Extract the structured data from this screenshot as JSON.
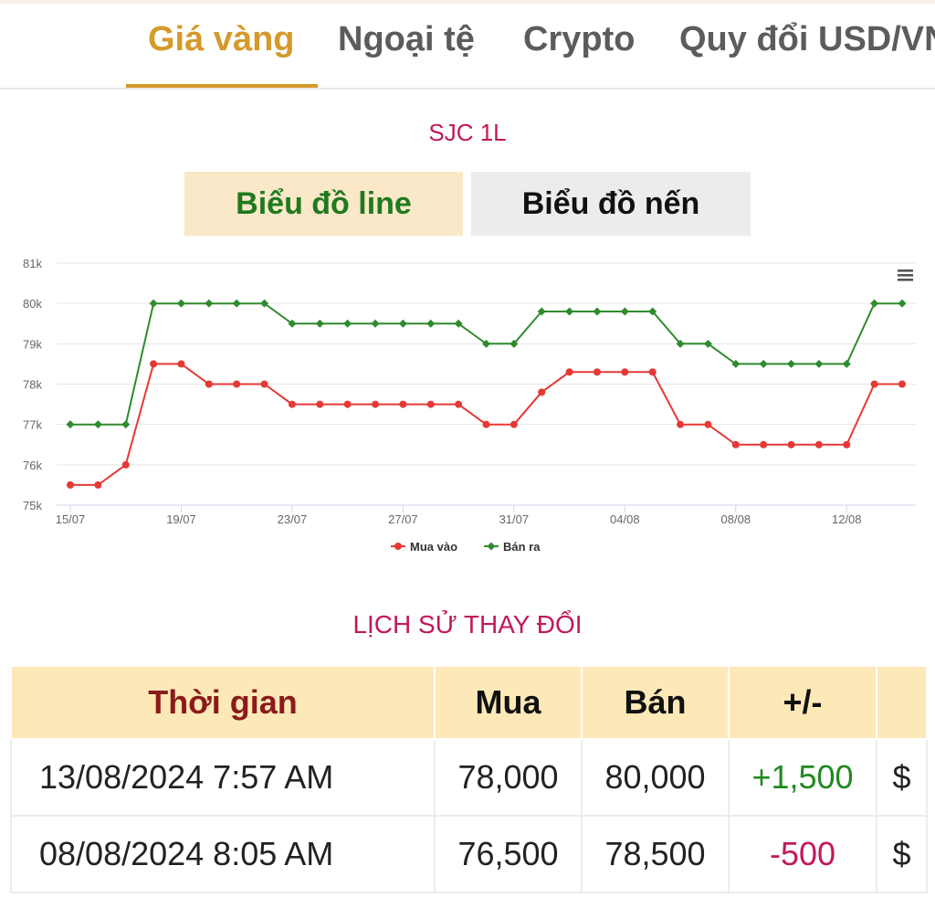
{
  "tabs": [
    {
      "label": "Giá vàng",
      "active": true
    },
    {
      "label": "Ngoại tệ",
      "active": false
    },
    {
      "label": "Crypto",
      "active": false
    },
    {
      "label": "Quy đổi USD/VND",
      "active": false
    }
  ],
  "chart_title": "SJC 1L",
  "toggle": {
    "line_label": "Biểu đồ line",
    "candle_label": "Biểu đồ nến"
  },
  "menu_icon": "hamburger-menu-icon",
  "chart_data": {
    "type": "line",
    "x": [
      "15/07",
      "16/07",
      "17/07",
      "18/07",
      "19/07",
      "20/07",
      "21/07",
      "22/07",
      "23/07",
      "24/07",
      "25/07",
      "26/07",
      "27/07",
      "28/07",
      "29/07",
      "30/07",
      "31/07",
      "01/08",
      "02/08",
      "03/08",
      "04/08",
      "05/08",
      "06/08",
      "07/08",
      "08/08",
      "09/08",
      "10/08",
      "11/08",
      "12/08",
      "13/08",
      "14/08"
    ],
    "x_tick_labels": [
      "15/07",
      "19/07",
      "23/07",
      "27/07",
      "31/07",
      "04/08",
      "08/08",
      "12/08"
    ],
    "y_tick_labels": [
      "75k",
      "76k",
      "77k",
      "78k",
      "79k",
      "80k",
      "81k"
    ],
    "ylim": [
      75,
      81
    ],
    "y_unit": "k",
    "grid": true,
    "legend_position": "bottom",
    "series": [
      {
        "name": "Mua vào",
        "color": "#e53935",
        "values": [
          75.5,
          75.5,
          76,
          78.5,
          78.5,
          78,
          78,
          78,
          77.5,
          77.5,
          77.5,
          77.5,
          77.5,
          77.5,
          77.5,
          77,
          77,
          77.8,
          78.3,
          78.3,
          78.3,
          78.3,
          77,
          77,
          76.5,
          76.5,
          76.5,
          76.5,
          76.5,
          78,
          78
        ]
      },
      {
        "name": "Bán ra",
        "color": "#2e8b2e",
        "values": [
          77,
          77,
          77,
          80,
          80,
          80,
          80,
          80,
          79.5,
          79.5,
          79.5,
          79.5,
          79.5,
          79.5,
          79.5,
          79,
          79,
          79.8,
          79.8,
          79.8,
          79.8,
          79.8,
          79,
          79,
          78.5,
          78.5,
          78.5,
          78.5,
          78.5,
          80,
          80
        ]
      }
    ]
  },
  "history": {
    "title": "LỊCH SỬ THAY ĐỔI",
    "headers": [
      "Thời gian",
      "Mua",
      "Bán",
      "+/-",
      ""
    ],
    "rows": [
      {
        "time": "13/08/2024 7:57 AM",
        "buy": "78,000",
        "sell": "80,000",
        "change": "+1,500",
        "currency": "$"
      },
      {
        "time": "08/08/2024 8:05 AM",
        "buy": "76,500",
        "sell": "78,500",
        "change": "-500",
        "currency": "$"
      }
    ]
  },
  "colors": {
    "accent": "#d49a2a",
    "header_bg": "#fde9b8",
    "title": "#c2185b",
    "positive": "#1f8a1f",
    "negative": "#c2185b"
  }
}
